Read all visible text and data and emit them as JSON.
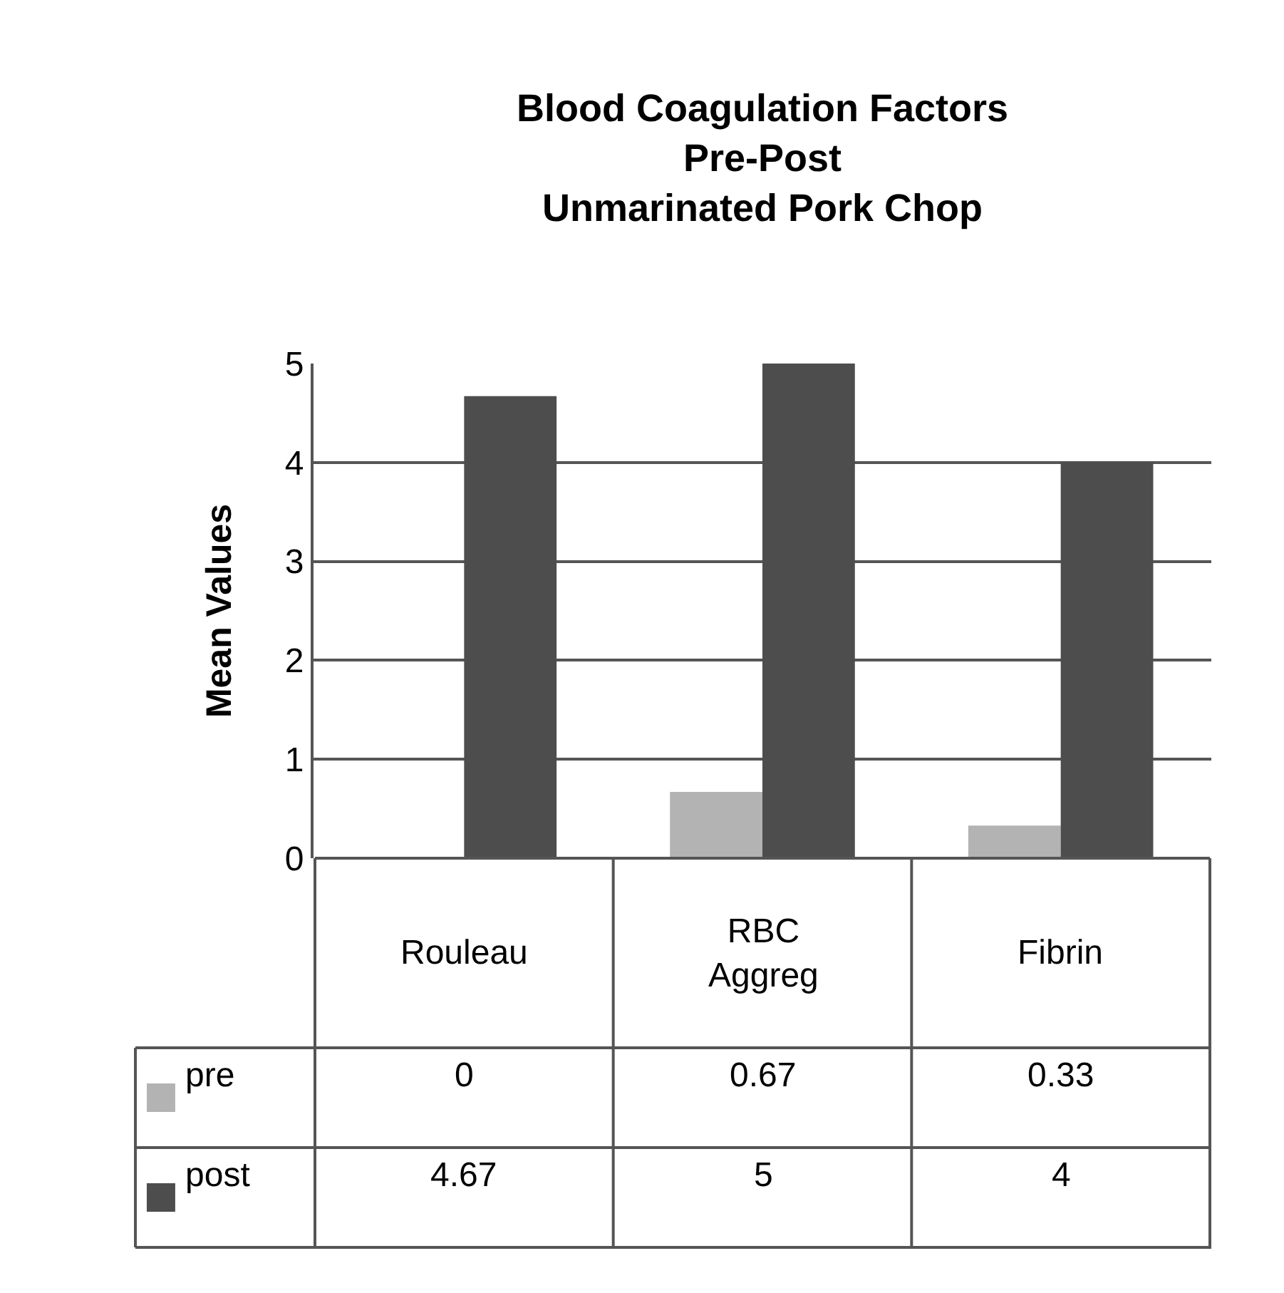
{
  "chart_data": {
    "type": "bar",
    "title": "Blood Coagulation Factors\nPre-Post\nUnmarinated Pork Chop",
    "ylabel": "Mean Values",
    "categories": [
      "Rouleau",
      "RBC Aggreg",
      "Fibrin"
    ],
    "series": [
      {
        "name": "pre",
        "color": "#b3b3b3",
        "values": [
          0,
          0.67,
          0.33
        ]
      },
      {
        "name": "post",
        "color": "#4d4d4d",
        "values": [
          4.67,
          5,
          4
        ]
      }
    ],
    "ylim": [
      0,
      5
    ],
    "yticks": [
      0,
      1,
      2,
      3,
      4,
      5
    ],
    "grid": "y",
    "legend": "bottom",
    "data_labels": true
  }
}
